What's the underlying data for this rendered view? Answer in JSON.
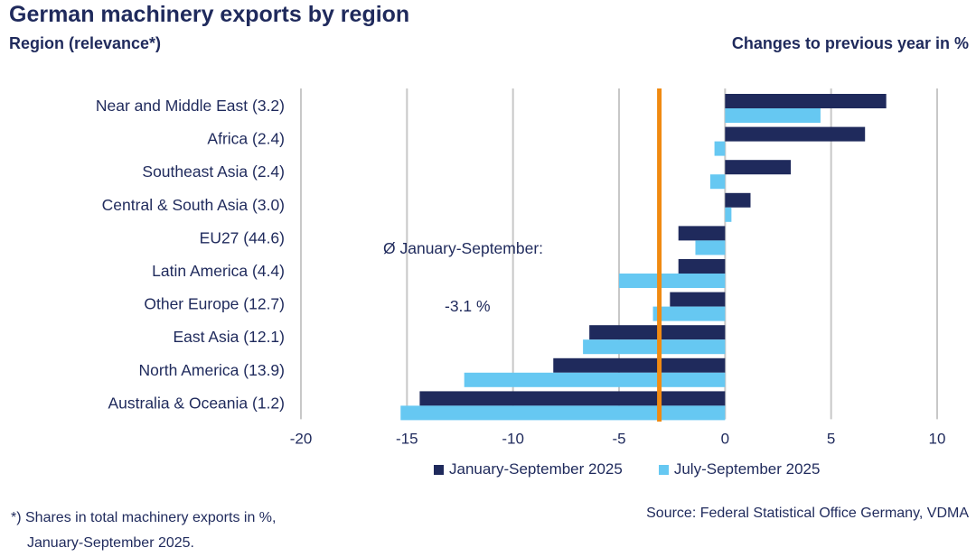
{
  "header": {
    "title": "German machinery exports by region",
    "subtitle_left": "Region (relevance*)",
    "subtitle_right": "Changes to previous year in %"
  },
  "annotation": {
    "line1": "Ø January-September:",
    "line2": "-3.1 %"
  },
  "footnote": {
    "line1": "*) Shares in total machinery exports in %,",
    "line2": "January-September 2025."
  },
  "source": "Source: Federal Statistical Office Germany, VDMA",
  "chart_data": {
    "type": "bar",
    "orientation": "horizontal",
    "categories": [
      "Near and Middle East (3.2)",
      "Africa (2.4)",
      "Southeast Asia (2.4)",
      "Central & South Asia (3.0)",
      "EU27 (44.6)",
      "Latin America (4.4)",
      "Other Europe (12.7)",
      "East Asia (12.1)",
      "North America (13.9)",
      "Australia & Oceania (1.2)"
    ],
    "series": [
      {
        "name": "January-September 2025",
        "color": "#1f2a5c",
        "values": [
          7.6,
          6.6,
          3.1,
          1.2,
          -2.2,
          -2.2,
          -2.6,
          -6.4,
          -8.1,
          -14.4
        ]
      },
      {
        "name": "July-September 2025",
        "color": "#66c8f2",
        "values": [
          4.5,
          -0.5,
          -0.7,
          0.3,
          -1.4,
          -5.0,
          -3.4,
          -6.7,
          -12.3,
          -15.3
        ]
      }
    ],
    "reference_line": {
      "value": -3.1,
      "color": "#f08a12"
    },
    "xlim": [
      -20,
      10
    ],
    "xticks": [
      -20,
      -15,
      -10,
      -5,
      0,
      5,
      10
    ],
    "grid": true,
    "legend": "bottom"
  }
}
